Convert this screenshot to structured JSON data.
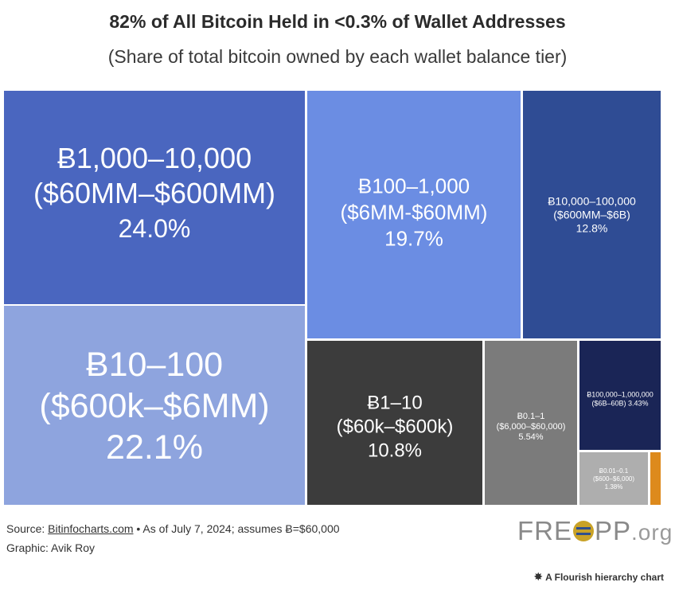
{
  "title": "82% of All Bitcoin Held in <0.3% of Wallet Addresses",
  "subtitle": "(Share of total bitcoin owned by each wallet balance tier)",
  "source": {
    "prefix": "Source: ",
    "link_text": "Bitinfocharts.com",
    "suffix": " • As of July 7, 2024; assumes Ƀ=$60,000"
  },
  "graphic_credit": "Graphic: Avik Roy",
  "logo": {
    "left": "FRE",
    "middle_icon": "freopp-o-logo-icon",
    "right": "PP",
    "tld": ".org"
  },
  "flourish": {
    "icon": "flourish-star-icon",
    "text": "A Flourish hierarchy chart"
  },
  "colors": {
    "tier_1000_10000": "#4a66bf",
    "tier_10_100": "#8ea4de",
    "tier_100_1000": "#6b8de3",
    "tier_10000_100000": "#2f4c94",
    "tier_1_10": "#3c3c3c",
    "tier_0_1_1": "#7b7b7b",
    "tier_100000_1000000": "#1a2556",
    "tier_0_01_0_1": "#aeaeae",
    "tier_small": "#dd8a1c"
  },
  "chart_data": {
    "type": "treemap",
    "unit": "%",
    "items": [
      {
        "range": "Ƀ1,000–10,000",
        "usd": "($60MM–$600MM)",
        "pct_label": "24.0%",
        "value": 24.0,
        "color": "#4a66bf"
      },
      {
        "range": "Ƀ10–100",
        "usd": "($600k–$6MM)",
        "pct_label": "22.1%",
        "value": 22.1,
        "color": "#8ea4de"
      },
      {
        "range": "Ƀ100–1,000",
        "usd": "($6MM-$60MM)",
        "pct_label": "19.7%",
        "value": 19.7,
        "color": "#6b8de3"
      },
      {
        "range": "Ƀ10,000–100,000",
        "usd": "($600MM–$6B)",
        "pct_label": "12.8%",
        "value": 12.8,
        "color": "#2f4c94"
      },
      {
        "range": "Ƀ1–10",
        "usd": "($60k–$600k)",
        "pct_label": "10.8%",
        "value": 10.8,
        "color": "#3c3c3c"
      },
      {
        "range": "Ƀ0.1–1",
        "usd": "($6,000–$60,000)",
        "pct_label": "5.54%",
        "value": 5.54,
        "color": "#7b7b7b"
      },
      {
        "range": "Ƀ100,000–1,000,000",
        "usd": "($6B–60B) 3.43%",
        "pct_label": "",
        "value": 3.43,
        "color": "#1a2556"
      },
      {
        "range": "Ƀ0.01–0.1",
        "usd": "($600–$6,000)",
        "pct_label": "1.38%",
        "value": 1.38,
        "color": "#aeaeae"
      },
      {
        "range": "",
        "usd": "",
        "pct_label": "",
        "value": 0.5,
        "color": "#dd8a1c"
      }
    ]
  }
}
